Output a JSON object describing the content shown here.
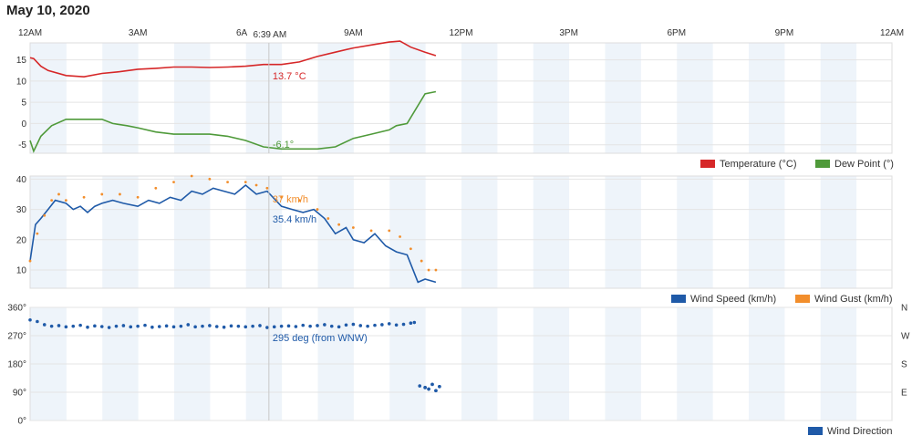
{
  "page": {
    "title": "May 10, 2020"
  },
  "crosshair": {
    "time_label": "6:39 AM",
    "hour": 6.65
  },
  "x_axis": {
    "min_hour": 0,
    "max_hour": 24,
    "labels": [
      "12AM",
      "3AM",
      "6AM",
      "9AM",
      "12PM",
      "3PM",
      "6PM",
      "9PM",
      "12AM"
    ]
  },
  "colors": {
    "temperature": "#d62728",
    "dew_point": "#4f9a3a",
    "wind_speed": "#1f5aa8",
    "wind_gust": "#f28e2c",
    "wind_direction": "#1f5aa8",
    "band": "#eef4fa"
  },
  "chart_data": [
    {
      "type": "line",
      "name": "temperature-dewpoint",
      "ylim": [
        -7,
        19
      ],
      "yticks": [
        "15",
        "10",
        "5",
        "0",
        "-5"
      ],
      "crosshair_values": [
        "13.7 °C",
        "-6.1°"
      ],
      "series": [
        {
          "name": "Temperature (°C)",
          "x": [
            0,
            0.1,
            0.3,
            0.5,
            1,
            1.5,
            2,
            2.5,
            3,
            3.5,
            4,
            4.5,
            5,
            5.5,
            6,
            6.5,
            7,
            7.5,
            8,
            8.5,
            9,
            9.5,
            10,
            10.3,
            10.6,
            11,
            11.3
          ],
          "values": [
            15.5,
            15.3,
            13.5,
            12.5,
            11.3,
            11.0,
            11.8,
            12.2,
            12.8,
            13.0,
            13.3,
            13.3,
            13.2,
            13.3,
            13.5,
            13.9,
            13.9,
            14.5,
            15.8,
            16.8,
            17.8,
            18.5,
            19.2,
            19.4,
            18.0,
            16.8,
            16.0
          ]
        },
        {
          "name": "Dew Point (°)",
          "x": [
            0,
            0.1,
            0.3,
            0.6,
            1,
            1.3,
            2,
            2.3,
            2.7,
            3,
            3.5,
            4,
            5,
            5.5,
            6,
            6.5,
            7,
            7.5,
            8,
            8.5,
            9,
            9.5,
            10,
            10.2,
            10.5,
            11,
            11.3
          ],
          "values": [
            -4.0,
            -6.5,
            -3.0,
            -0.5,
            1.0,
            1.0,
            1.0,
            0.0,
            -0.5,
            -1.0,
            -2.0,
            -2.5,
            -2.5,
            -3.0,
            -4.0,
            -5.5,
            -6.0,
            -6.0,
            -6.0,
            -5.5,
            -3.5,
            -2.5,
            -1.5,
            -0.5,
            0.0,
            7.0,
            7.5
          ]
        }
      ],
      "legend": [
        "Temperature (°C)",
        "Dew Point (°)"
      ]
    },
    {
      "type": "line",
      "name": "wind-speed-gust",
      "ylim": [
        4,
        41
      ],
      "yticks": [
        "40",
        "30",
        "20",
        "10"
      ],
      "crosshair_values": [
        "37 km/h",
        "35.4 km/h"
      ],
      "series": [
        {
          "name": "Wind Speed (km/h)",
          "x": [
            0,
            0.15,
            0.3,
            0.5,
            0.7,
            1,
            1.2,
            1.4,
            1.6,
            1.8,
            2,
            2.3,
            2.6,
            3,
            3.3,
            3.6,
            3.9,
            4.2,
            4.5,
            4.8,
            5.1,
            5.4,
            5.7,
            6,
            6.3,
            6.6,
            7,
            7.3,
            7.6,
            7.9,
            8.2,
            8.5,
            8.8,
            9,
            9.3,
            9.6,
            9.9,
            10.2,
            10.5,
            10.8,
            11,
            11.3
          ],
          "values": [
            13,
            25,
            27,
            30,
            33,
            32,
            30,
            31,
            29,
            31,
            32,
            33,
            32,
            31,
            33,
            32,
            34,
            33,
            36,
            35,
            37,
            36,
            35,
            38,
            35,
            36,
            31,
            30,
            29,
            30,
            27,
            22,
            24,
            20,
            19,
            22,
            18,
            16,
            15,
            6,
            7,
            6
          ]
        },
        {
          "name": "Wind Gust (km/h)",
          "x": [
            0,
            0.2,
            0.4,
            0.6,
            0.8,
            1,
            1.5,
            2,
            2.5,
            3,
            3.5,
            4,
            4.5,
            5,
            5.5,
            6,
            6.3,
            6.6,
            7,
            7.5,
            8,
            8.3,
            8.6,
            9,
            9.5,
            10,
            10.3,
            10.6,
            10.9,
            11.1,
            11.3
          ],
          "values": [
            13,
            22,
            28,
            33,
            35,
            33,
            34,
            35,
            35,
            34,
            37,
            39,
            41,
            40,
            39,
            39,
            38,
            37,
            34,
            33,
            30,
            27,
            25,
            24,
            23,
            23,
            21,
            17,
            13,
            10,
            10
          ]
        }
      ],
      "legend": [
        "Wind Speed (km/h)",
        "Wind Gust (km/h)"
      ]
    },
    {
      "type": "scatter",
      "name": "wind-direction",
      "ylim": [
        0,
        360
      ],
      "yticks": [
        "360°",
        "270°",
        "180°",
        "90°",
        "0°"
      ],
      "right_ticks": [
        "N",
        "W",
        "S",
        "E"
      ],
      "crosshair_values": [
        "295 deg (from WNW)"
      ],
      "series": [
        {
          "name": "Wind Direction",
          "x": [
            0,
            0.2,
            0.4,
            0.6,
            0.8,
            1,
            1.2,
            1.4,
            1.6,
            1.8,
            2,
            2.2,
            2.4,
            2.6,
            2.8,
            3,
            3.2,
            3.4,
            3.6,
            3.8,
            4,
            4.2,
            4.4,
            4.6,
            4.8,
            5,
            5.2,
            5.4,
            5.6,
            5.8,
            6,
            6.2,
            6.4,
            6.6,
            6.8,
            7,
            7.2,
            7.4,
            7.6,
            7.8,
            8,
            8.2,
            8.4,
            8.6,
            8.8,
            9,
            9.2,
            9.4,
            9.6,
            9.8,
            10,
            10.2,
            10.4,
            10.6,
            10.7,
            10.85,
            11,
            11.1,
            11.2,
            11.3,
            11.4
          ],
          "values": [
            320,
            315,
            305,
            300,
            302,
            298,
            300,
            303,
            297,
            301,
            299,
            296,
            300,
            302,
            298,
            300,
            303,
            297,
            299,
            301,
            298,
            300,
            305,
            298,
            300,
            302,
            299,
            297,
            301,
            300,
            298,
            300,
            302,
            296,
            298,
            300,
            301,
            299,
            303,
            300,
            302,
            305,
            300,
            298,
            304,
            306,
            302,
            300,
            303,
            305,
            308,
            304,
            306,
            310,
            312,
            110,
            105,
            100,
            115,
            95,
            108
          ]
        }
      ],
      "legend": [
        "Wind Direction"
      ]
    }
  ]
}
